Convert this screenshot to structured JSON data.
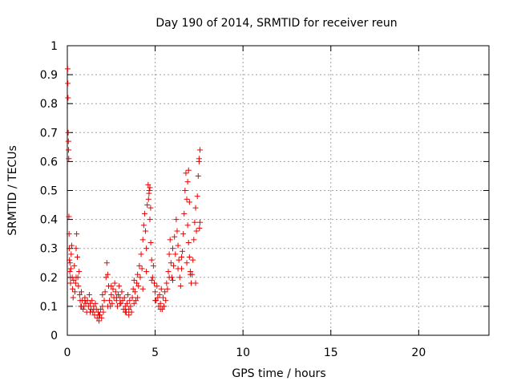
{
  "chart_data": {
    "type": "scatter",
    "title": "Day 190 of 2014, SRMTID for receiver reun",
    "xlabel": "GPS time / hours",
    "ylabel": "SRMTID / TECUs",
    "xlim": [
      0,
      24
    ],
    "ylim": [
      0,
      1
    ],
    "xticks": [
      0,
      5,
      10,
      15,
      20
    ],
    "xtick_labels": [
      "0",
      "5",
      "10",
      "15",
      "20"
    ],
    "yticks": [
      0,
      0.1,
      0.2,
      0.3,
      0.4,
      0.5,
      0.6,
      0.7,
      0.8,
      0.9,
      1
    ],
    "ytick_labels": [
      "0",
      "0.1",
      "0.2",
      "0.3",
      "0.4",
      "0.5",
      "0.6",
      "0.7",
      "0.8",
      "0.9",
      "1"
    ],
    "grid": true,
    "marker": "+",
    "series": [
      {
        "name": "SRMTID",
        "color": "#ee0000",
        "x": [
          0.02,
          0.03,
          0.04,
          0.05,
          0.06,
          0.07,
          0.08,
          0.09,
          0.1,
          0.11,
          0.12,
          0.14,
          0.15,
          0.17,
          0.18,
          0.2,
          0.22,
          0.25,
          0.28,
          0.3,
          0.33,
          0.36,
          0.4,
          0.43,
          0.47,
          0.5,
          0.53,
          0.57,
          0.6,
          0.63,
          0.67,
          0.7,
          0.73,
          0.77,
          0.8,
          0.85,
          0.9,
          0.95,
          1.0,
          1.05,
          1.1,
          1.15,
          1.2,
          1.25,
          1.3,
          1.35,
          1.4,
          1.45,
          1.5,
          1.55,
          1.6,
          1.65,
          1.7,
          1.75,
          1.8,
          1.85,
          1.9,
          1.95,
          2.0,
          2.05,
          2.1,
          2.15,
          2.2,
          2.25,
          2.3,
          2.35,
          2.4,
          2.45,
          2.5,
          2.55,
          2.6,
          2.65,
          2.7,
          2.75,
          2.8,
          2.85,
          2.9,
          2.95,
          3.0,
          3.05,
          3.1,
          3.15,
          3.2,
          3.25,
          3.3,
          3.35,
          3.4,
          3.45,
          3.5,
          3.55,
          3.6,
          3.65,
          3.7,
          3.75,
          3.8,
          3.85,
          3.9,
          3.95,
          4.0,
          4.05,
          4.1,
          4.15,
          4.2,
          4.25,
          4.3,
          4.35,
          4.4,
          4.45,
          4.5,
          4.55,
          4.6,
          4.65,
          4.7,
          4.75,
          4.8,
          4.85,
          4.9,
          4.95,
          5.0,
          5.05,
          5.1,
          5.15,
          5.2,
          5.25,
          5.3,
          5.35,
          5.4,
          5.45,
          5.5,
          5.55,
          5.6,
          5.65,
          5.7,
          5.75,
          5.8,
          5.85,
          5.9,
          5.95,
          6.0,
          6.05,
          6.1,
          6.15,
          6.2,
          6.25,
          6.3,
          6.35,
          6.4,
          6.45,
          6.5,
          6.55,
          6.6,
          6.65,
          6.7,
          6.75,
          6.8,
          6.85,
          6.9,
          6.95,
          7.0,
          7.05,
          7.1,
          7.15,
          7.2,
          7.25,
          7.3,
          7.35,
          7.4,
          7.45,
          7.5,
          7.55,
          0.5,
          1.0,
          1.5,
          2.0,
          2.5,
          3.0,
          3.5,
          4.0,
          4.5,
          5.0,
          5.5,
          6.0,
          6.5,
          7.0,
          0.8,
          1.3,
          1.8,
          2.3,
          2.8,
          3.3,
          3.8,
          4.3,
          4.8,
          5.3,
          5.8,
          6.3,
          6.8,
          7.3,
          4.62,
          4.66,
          4.7,
          4.74,
          6.85,
          6.9,
          6.95,
          7.5,
          7.52,
          7.55
        ],
        "y": [
          0.92,
          0.87,
          0.82,
          0.7,
          0.67,
          0.64,
          0.61,
          0.41,
          0.35,
          0.3,
          0.26,
          0.22,
          0.25,
          0.2,
          0.18,
          0.23,
          0.28,
          0.31,
          0.2,
          0.16,
          0.13,
          0.19,
          0.24,
          0.15,
          0.18,
          0.3,
          0.35,
          0.27,
          0.2,
          0.17,
          0.22,
          0.14,
          0.12,
          0.1,
          0.15,
          0.12,
          0.09,
          0.1,
          0.13,
          0.11,
          0.08,
          0.12,
          0.1,
          0.14,
          0.11,
          0.09,
          0.12,
          0.08,
          0.1,
          0.07,
          0.11,
          0.09,
          0.06,
          0.08,
          0.05,
          0.07,
          0.09,
          0.06,
          0.1,
          0.08,
          0.12,
          0.15,
          0.2,
          0.25,
          0.21,
          0.17,
          0.12,
          0.1,
          0.14,
          0.11,
          0.16,
          0.13,
          0.18,
          0.15,
          0.12,
          0.1,
          0.14,
          0.17,
          0.13,
          0.11,
          0.15,
          0.12,
          0.09,
          0.13,
          0.1,
          0.08,
          0.11,
          0.14,
          0.09,
          0.12,
          0.1,
          0.08,
          0.13,
          0.16,
          0.19,
          0.15,
          0.12,
          0.18,
          0.21,
          0.17,
          0.24,
          0.2,
          0.28,
          0.23,
          0.33,
          0.38,
          0.42,
          0.36,
          0.3,
          0.45,
          0.52,
          0.49,
          0.4,
          0.32,
          0.26,
          0.2,
          0.24,
          0.18,
          0.15,
          0.12,
          0.17,
          0.13,
          0.1,
          0.14,
          0.11,
          0.16,
          0.09,
          0.13,
          0.1,
          0.15,
          0.12,
          0.18,
          0.16,
          0.22,
          0.28,
          0.33,
          0.25,
          0.2,
          0.3,
          0.24,
          0.34,
          0.28,
          0.4,
          0.36,
          0.31,
          0.26,
          0.2,
          0.17,
          0.23,
          0.29,
          0.35,
          0.42,
          0.5,
          0.56,
          0.47,
          0.38,
          0.32,
          0.27,
          0.22,
          0.18,
          0.21,
          0.26,
          0.33,
          0.39,
          0.44,
          0.36,
          0.48,
          0.55,
          0.61,
          0.64,
          0.2,
          0.12,
          0.09,
          0.14,
          0.17,
          0.11,
          0.07,
          0.13,
          0.22,
          0.12,
          0.1,
          0.19,
          0.27,
          0.21,
          0.1,
          0.08,
          0.07,
          0.1,
          0.13,
          0.08,
          0.11,
          0.16,
          0.19,
          0.09,
          0.2,
          0.23,
          0.25,
          0.18,
          0.47,
          0.5,
          0.51,
          0.44,
          0.53,
          0.57,
          0.46,
          0.6,
          0.37,
          0.39
        ]
      }
    ]
  }
}
